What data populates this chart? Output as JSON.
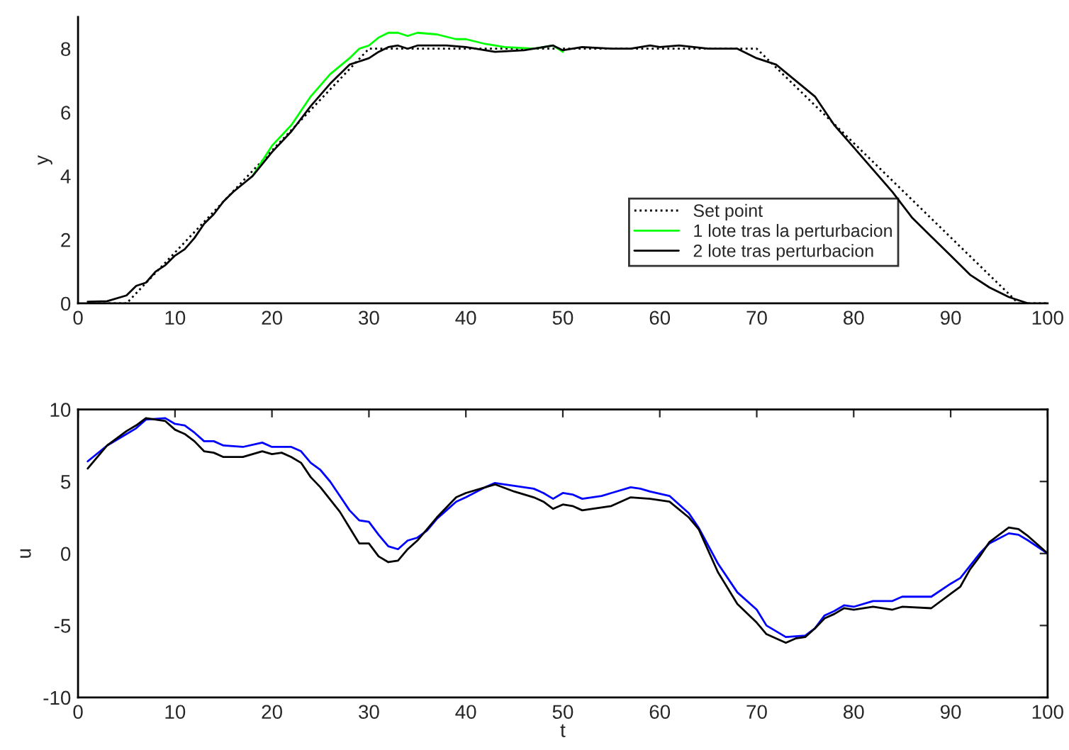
{
  "chart_data": [
    {
      "type": "line",
      "ylabel": "y",
      "xlim": [
        0,
        100
      ],
      "ylim": [
        0,
        9
      ],
      "xticks": [
        0,
        10,
        20,
        30,
        40,
        50,
        60,
        70,
        80,
        90,
        100
      ],
      "yticks": [
        0,
        2,
        4,
        6,
        8
      ],
      "grid": false,
      "legend": "bottom right",
      "series": [
        {
          "name": "Set point",
          "color": "#000000",
          "line_style": "dotted",
          "x": [
            1,
            5,
            30,
            70,
            97,
            100
          ],
          "values": [
            0,
            0,
            8,
            8,
            0,
            0
          ]
        },
        {
          "name": "1 lote tras la perturbacion",
          "color": "#00ff00",
          "line_style": "solid",
          "x": [
            18,
            20,
            22,
            24,
            26,
            28,
            29,
            30,
            31,
            32,
            33,
            34,
            35,
            37,
            39,
            40,
            42,
            44,
            47,
            49,
            50
          ],
          "values": [
            4.0,
            4.95,
            5.6,
            6.5,
            7.2,
            7.7,
            8.0,
            8.1,
            8.35,
            8.5,
            8.5,
            8.4,
            8.5,
            8.45,
            8.3,
            8.3,
            8.15,
            8.05,
            8.0,
            8.1,
            7.9
          ]
        },
        {
          "name": "2 lote tras perturbacion",
          "color": "#000000",
          "line_style": "solid",
          "x": [
            1,
            3,
            5,
            6,
            7,
            8,
            9,
            10,
            11,
            12,
            13,
            14,
            15,
            16,
            18,
            20,
            22,
            24,
            26,
            28,
            30,
            31,
            32,
            33,
            34,
            35,
            38,
            40,
            43,
            46,
            49,
            50,
            52,
            55,
            57,
            59,
            60,
            62,
            65,
            68,
            70,
            72,
            74,
            76,
            78,
            80,
            82,
            84,
            86,
            88,
            90,
            92,
            94,
            96,
            98
          ],
          "values": [
            0.05,
            0.07,
            0.25,
            0.55,
            0.65,
            1.0,
            1.2,
            1.5,
            1.7,
            2.05,
            2.5,
            2.8,
            3.2,
            3.5,
            4.0,
            4.75,
            5.4,
            6.2,
            6.9,
            7.5,
            7.7,
            7.9,
            8.05,
            8.1,
            8.0,
            8.1,
            8.1,
            8.05,
            7.9,
            7.95,
            8.1,
            7.95,
            8.05,
            8.0,
            8.0,
            8.1,
            8.05,
            8.1,
            8.0,
            8.0,
            7.7,
            7.5,
            7.0,
            6.5,
            5.6,
            4.9,
            4.2,
            3.5,
            2.7,
            2.1,
            1.5,
            0.9,
            0.5,
            0.2,
            0.0
          ]
        }
      ]
    },
    {
      "type": "line",
      "xlabel": "t",
      "ylabel": "u",
      "xlim": [
        0,
        100
      ],
      "ylim": [
        -10,
        10
      ],
      "xticks": [
        0,
        10,
        20,
        30,
        40,
        50,
        60,
        70,
        80,
        90,
        100
      ],
      "yticks": [
        -10,
        -5,
        0,
        5,
        10
      ],
      "grid": false,
      "legend": false,
      "series": [
        {
          "color": "#0000ff",
          "line_style": "solid",
          "x": [
            1,
            3,
            5,
            6,
            7,
            9,
            10,
            11,
            12,
            13,
            14,
            15,
            17,
            19,
            20,
            22,
            23,
            24,
            25,
            26,
            27,
            28,
            29,
            30,
            31,
            32,
            33,
            34,
            35,
            36,
            37,
            38,
            39,
            40,
            42,
            43,
            45,
            47,
            48,
            49,
            50,
            51,
            52,
            54,
            55,
            57,
            58,
            59,
            61,
            63,
            64,
            66,
            68,
            70,
            71,
            73,
            75,
            76,
            77,
            78,
            79,
            80,
            82,
            84,
            85,
            88,
            90,
            91,
            93,
            94,
            96,
            97,
            98,
            100
          ],
          "values": [
            6.4,
            7.5,
            8.3,
            8.7,
            9.3,
            9.4,
            9.0,
            8.9,
            8.4,
            7.8,
            7.8,
            7.5,
            7.4,
            7.7,
            7.4,
            7.4,
            7.1,
            6.3,
            5.8,
            5.0,
            4.0,
            3.0,
            2.3,
            2.2,
            1.3,
            0.5,
            0.3,
            0.9,
            1.1,
            1.6,
            2.4,
            3.0,
            3.6,
            3.9,
            4.6,
            4.9,
            4.7,
            4.5,
            4.2,
            3.8,
            4.2,
            4.1,
            3.8,
            4.0,
            4.2,
            4.6,
            4.5,
            4.3,
            4.0,
            2.8,
            1.8,
            -0.7,
            -2.7,
            -3.9,
            -5.0,
            -5.8,
            -5.7,
            -5.2,
            -4.3,
            -4.0,
            -3.6,
            -3.7,
            -3.3,
            -3.3,
            -3.0,
            -3.0,
            -2.1,
            -1.7,
            0.0,
            0.7,
            1.4,
            1.3,
            0.9,
            0.0
          ]
        },
        {
          "color": "#000000",
          "line_style": "solid",
          "x": [
            1,
            3,
            5,
            6,
            7,
            9,
            10,
            11,
            12,
            13,
            14,
            15,
            17,
            19,
            20,
            21,
            22,
            23,
            24,
            25,
            27,
            28,
            29,
            30,
            31,
            32,
            33,
            34,
            35,
            37,
            39,
            40,
            42,
            43,
            45,
            47,
            48,
            49,
            50,
            51,
            52,
            54,
            55,
            57,
            59,
            61,
            63,
            64,
            66,
            68,
            70,
            71,
            73,
            74,
            75,
            76,
            77,
            78,
            79,
            80,
            82,
            84,
            85,
            88,
            90,
            91,
            92,
            93,
            94,
            96,
            97,
            98,
            100
          ],
          "values": [
            5.9,
            7.5,
            8.5,
            8.9,
            9.4,
            9.2,
            8.6,
            8.3,
            7.8,
            7.1,
            7.0,
            6.7,
            6.7,
            7.1,
            6.9,
            7.0,
            6.7,
            6.3,
            5.3,
            4.6,
            2.9,
            1.8,
            0.7,
            0.7,
            -0.2,
            -0.6,
            -0.5,
            0.3,
            0.9,
            2.5,
            3.9,
            4.2,
            4.6,
            4.8,
            4.3,
            3.9,
            3.6,
            3.1,
            3.4,
            3.3,
            3.0,
            3.2,
            3.3,
            3.9,
            3.8,
            3.6,
            2.5,
            1.7,
            -1.3,
            -3.5,
            -4.8,
            -5.6,
            -6.2,
            -5.9,
            -5.8,
            -5.2,
            -4.5,
            -4.2,
            -3.8,
            -3.9,
            -3.7,
            -3.9,
            -3.7,
            -3.8,
            -2.8,
            -2.3,
            -1.1,
            -0.2,
            0.8,
            1.8,
            1.7,
            1.2,
            0.0
          ]
        }
      ]
    }
  ]
}
